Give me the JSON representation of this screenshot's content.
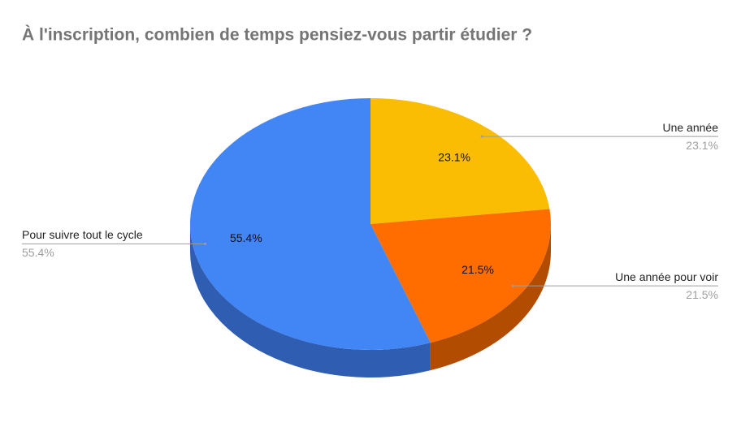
{
  "chart_data": {
    "type": "pie3d",
    "title": "À l'inscription, combien de temps pensiez-vous partir étudier ?",
    "categories": [
      "Une année",
      "Une année pour voir",
      "Pour suivre tout le cycle"
    ],
    "values": [
      23.1,
      21.5,
      55.4
    ],
    "value_labels": [
      "23.1%",
      "21.5%",
      "55.4%"
    ],
    "colors": [
      "#fbbc04",
      "#ff6d01",
      "#4285f4"
    ],
    "side_colors": [
      "#b08400",
      "#b24c00",
      "#2e5db1"
    ]
  }
}
